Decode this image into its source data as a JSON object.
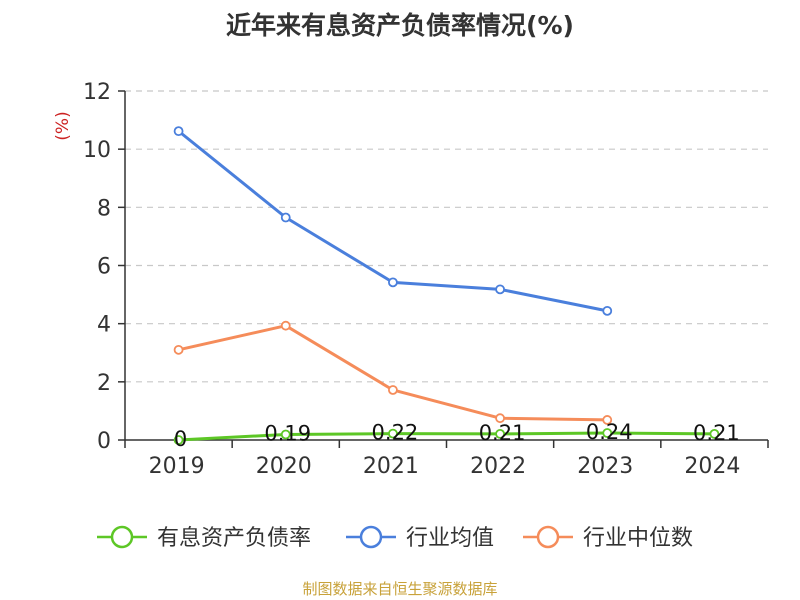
{
  "chart_data": {
    "type": "line",
    "title": "近年来有息资产负债率情况(%)",
    "ylabel": "(%)",
    "xlabel": "",
    "categories": [
      "2019",
      "2020",
      "2021",
      "2022",
      "2023",
      "2024"
    ],
    "ylim": [
      0,
      12
    ],
    "yticks": [
      "0",
      "2",
      "4",
      "6",
      "8",
      "10",
      "12"
    ],
    "grid": true,
    "legend_position": "bottom",
    "series": [
      {
        "name": "有息资产负债率",
        "color": "#5dc726",
        "values": [
          0,
          0.19,
          0.22,
          0.21,
          0.24,
          0.21
        ],
        "labels": [
          "0",
          "0.19",
          "0.22",
          "0.21",
          "0.24",
          "0.21"
        ]
      },
      {
        "name": "行业均值",
        "color": "#4a7fdc",
        "values": [
          10.62,
          7.65,
          5.42,
          5.18,
          4.44,
          null
        ]
      },
      {
        "name": "行业中位数",
        "color": "#f58c5a",
        "values": [
          3.1,
          3.93,
          1.72,
          0.75,
          0.69,
          null
        ]
      }
    ]
  },
  "source": {
    "text": "制图数据来自恒生聚源数据库",
    "color": "#c8a23a"
  },
  "ylabel_color": "#cc2222"
}
